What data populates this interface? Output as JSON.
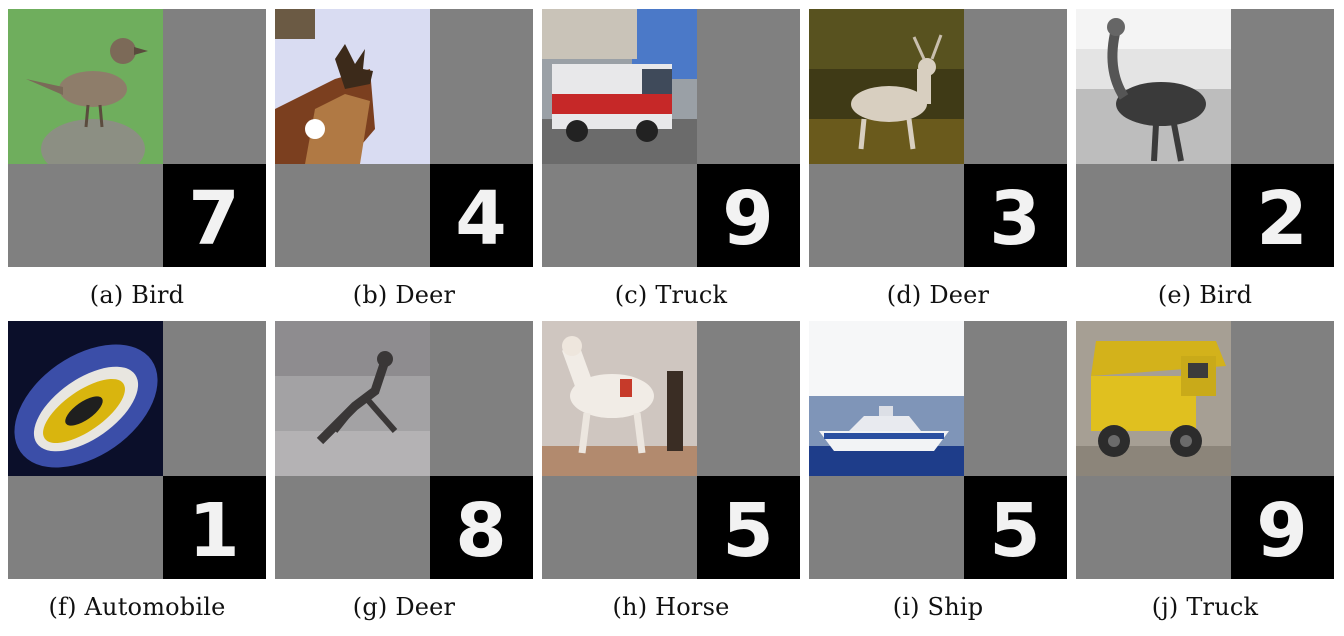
{
  "figure": {
    "panels": [
      {
        "label": "(a)",
        "class_name": "Bird",
        "digit": "7",
        "image": "bird-on-rock"
      },
      {
        "label": "(b)",
        "class_name": "Deer",
        "digit": "4",
        "image": "deer-head-sky"
      },
      {
        "label": "(c)",
        "class_name": "Truck",
        "digit": "9",
        "image": "fire-truck"
      },
      {
        "label": "(d)",
        "class_name": "Deer",
        "digit": "3",
        "image": "deer-grass"
      },
      {
        "label": "(e)",
        "class_name": "Bird",
        "digit": "2",
        "image": "ostrich-bw"
      },
      {
        "label": "(f)",
        "class_name": "Automobile",
        "digit": "1",
        "image": "yellow-sports-car"
      },
      {
        "label": "(g)",
        "class_name": "Deer",
        "digit": "8",
        "image": "deer-leaping-gray"
      },
      {
        "label": "(h)",
        "class_name": "Horse",
        "digit": "5",
        "image": "white-horse"
      },
      {
        "label": "(i)",
        "class_name": "Ship",
        "digit": "5",
        "image": "speedboat"
      },
      {
        "label": "(j)",
        "class_name": "Truck",
        "digit": "9",
        "image": "dump-truck"
      }
    ]
  }
}
